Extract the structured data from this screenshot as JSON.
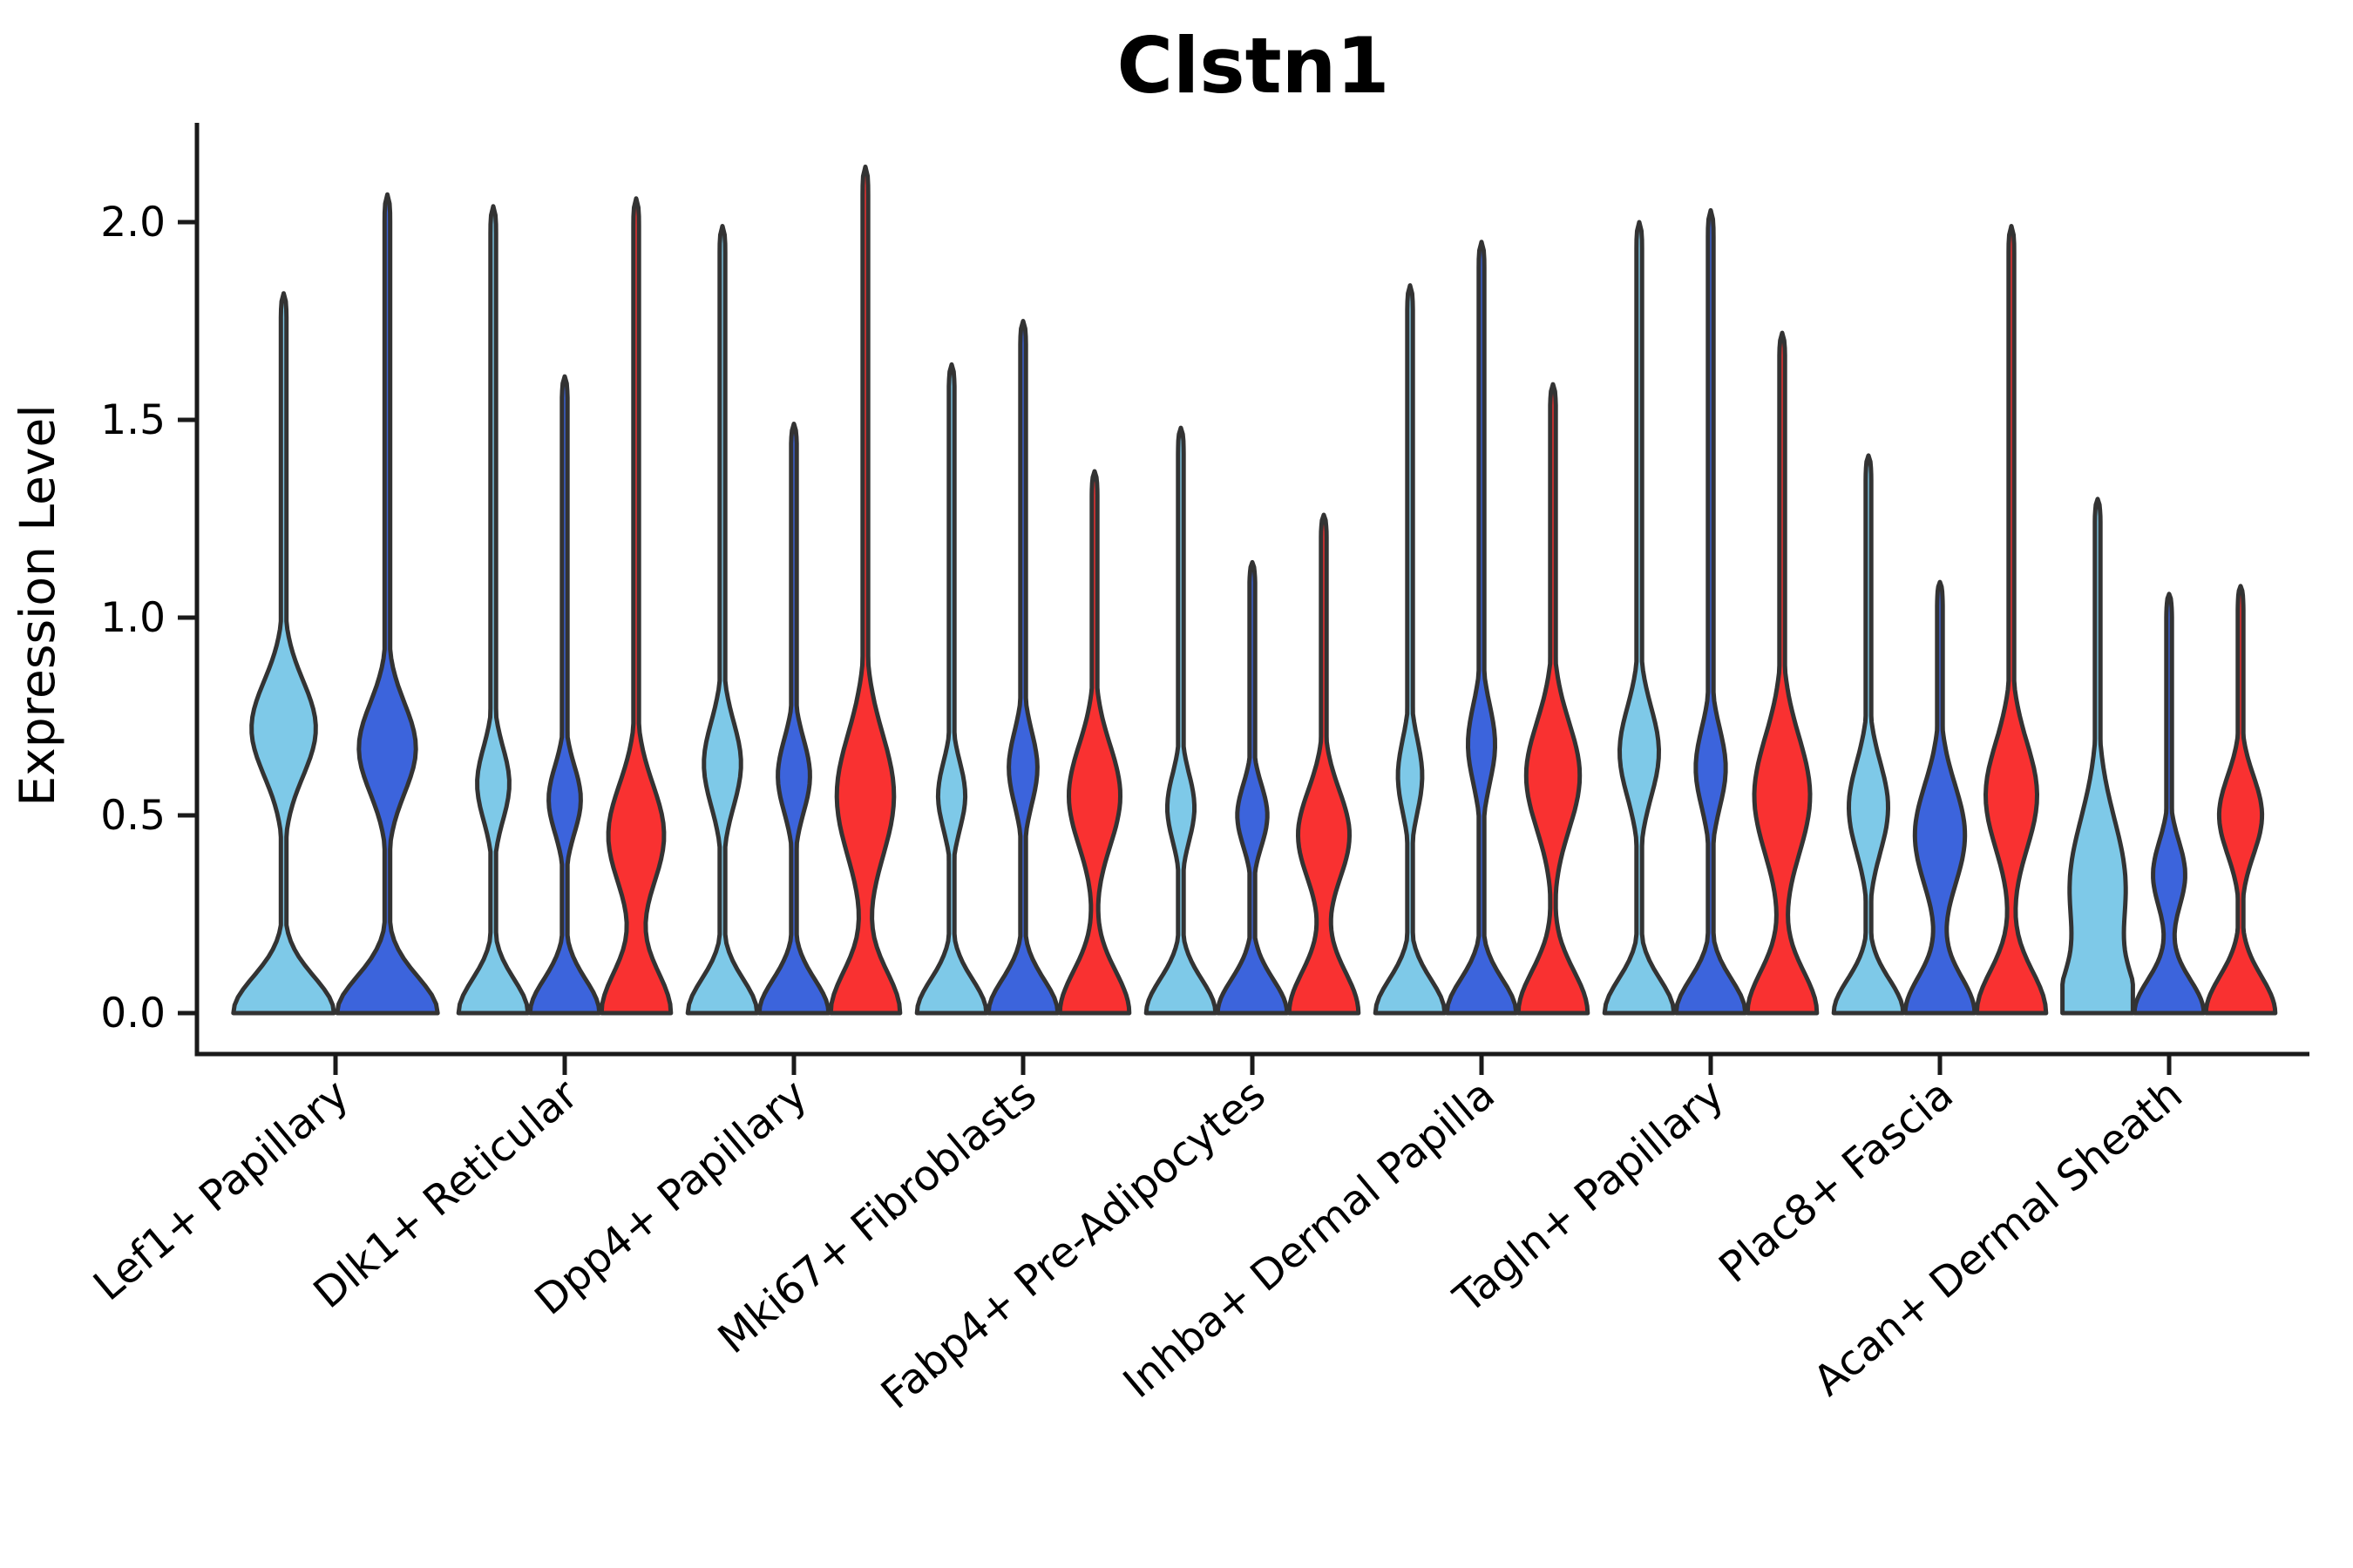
{
  "chart_data": {
    "type": "violin",
    "title": "Clstn1",
    "ylabel": "Expression Level",
    "xlabel": "",
    "yticks": [
      "0.0",
      "0.5",
      "1.0",
      "1.5",
      "2.0"
    ],
    "ytick_values": [
      0.0,
      0.5,
      1.0,
      1.5,
      2.0
    ],
    "ylim": [
      -0.1,
      2.25
    ],
    "grid": false,
    "legend": "none",
    "series": [
      {
        "name": "sky-blue-condition",
        "color": "#7EC9E8"
      },
      {
        "name": "royal-blue-condition",
        "color": "#3C64DC"
      },
      {
        "name": "red-condition",
        "color": "#F93131"
      }
    ],
    "outline_color": "#333333",
    "axis_color": "#1a1a1a",
    "groups": [
      {
        "label": "Lef1+ Papillary",
        "violins": [
          {
            "series": 0,
            "max": 1.82,
            "bulge_center": 0.72,
            "bulge_sigma": 0.17,
            "bulge_frac": 0.62,
            "base_sigma": 0.13
          },
          {
            "series": 1,
            "max": 2.07,
            "bulge_center": 0.67,
            "bulge_sigma": 0.16,
            "bulge_frac": 0.55,
            "base_sigma": 0.13
          }
        ]
      },
      {
        "label": "Dlk1+ Reticular",
        "violins": [
          {
            "series": 0,
            "max": 2.04,
            "bulge_center": 0.58,
            "bulge_sigma": 0.13,
            "bulge_frac": 0.45,
            "base_sigma": 0.12
          },
          {
            "series": 1,
            "max": 1.61,
            "bulge_center": 0.54,
            "bulge_sigma": 0.12,
            "bulge_frac": 0.45,
            "base_sigma": 0.12
          },
          {
            "series": 2,
            "max": 2.06,
            "bulge_center": 0.45,
            "bulge_sigma": 0.18,
            "bulge_frac": 0.78,
            "base_sigma": 0.15
          }
        ]
      },
      {
        "label": "Dpp4+ Papillary",
        "violins": [
          {
            "series": 0,
            "max": 1.99,
            "bulge_center": 0.63,
            "bulge_sigma": 0.15,
            "bulge_frac": 0.52,
            "base_sigma": 0.12
          },
          {
            "series": 1,
            "max": 1.49,
            "bulge_center": 0.6,
            "bulge_sigma": 0.13,
            "bulge_frac": 0.45,
            "base_sigma": 0.12
          },
          {
            "series": 2,
            "max": 2.14,
            "bulge_center": 0.55,
            "bulge_sigma": 0.22,
            "bulge_frac": 0.8,
            "base_sigma": 0.15
          }
        ]
      },
      {
        "label": "Mki67+ Fibroblasts",
        "violins": [
          {
            "series": 0,
            "max": 1.64,
            "bulge_center": 0.55,
            "bulge_sigma": 0.12,
            "bulge_frac": 0.38,
            "base_sigma": 0.12
          },
          {
            "series": 1,
            "max": 1.75,
            "bulge_center": 0.62,
            "bulge_sigma": 0.13,
            "bulge_frac": 0.4,
            "base_sigma": 0.12
          },
          {
            "series": 2,
            "max": 1.37,
            "bulge_center": 0.55,
            "bulge_sigma": 0.18,
            "bulge_frac": 0.72,
            "base_sigma": 0.15
          }
        ]
      },
      {
        "label": "Fabp4+ Pre-Adipocytes",
        "violins": [
          {
            "series": 0,
            "max": 1.48,
            "bulge_center": 0.52,
            "bulge_sigma": 0.12,
            "bulge_frac": 0.38,
            "base_sigma": 0.12
          },
          {
            "series": 1,
            "max": 1.14,
            "bulge_center": 0.5,
            "bulge_sigma": 0.11,
            "bulge_frac": 0.42,
            "base_sigma": 0.12
          },
          {
            "series": 2,
            "max": 1.26,
            "bulge_center": 0.45,
            "bulge_sigma": 0.16,
            "bulge_frac": 0.72,
            "base_sigma": 0.15
          }
        ]
      },
      {
        "label": "Inhba+ Dermal Papilla",
        "violins": [
          {
            "series": 0,
            "max": 1.84,
            "bulge_center": 0.6,
            "bulge_sigma": 0.13,
            "bulge_frac": 0.34,
            "base_sigma": 0.12
          },
          {
            "series": 1,
            "max": 1.95,
            "bulge_center": 0.68,
            "bulge_sigma": 0.14,
            "bulge_frac": 0.38,
            "base_sigma": 0.12
          },
          {
            "series": 2,
            "max": 1.59,
            "bulge_center": 0.6,
            "bulge_sigma": 0.19,
            "bulge_frac": 0.75,
            "base_sigma": 0.15
          }
        ]
      },
      {
        "label": "Tagln+ Papillary",
        "violins": [
          {
            "series": 0,
            "max": 2.0,
            "bulge_center": 0.66,
            "bulge_sigma": 0.16,
            "bulge_frac": 0.55,
            "base_sigma": 0.12
          },
          {
            "series": 1,
            "max": 2.03,
            "bulge_center": 0.62,
            "bulge_sigma": 0.14,
            "bulge_frac": 0.42,
            "base_sigma": 0.12
          },
          {
            "series": 2,
            "max": 1.72,
            "bulge_center": 0.55,
            "bulge_sigma": 0.21,
            "bulge_frac": 0.78,
            "base_sigma": 0.15
          }
        ]
      },
      {
        "label": "Plac8+ Fascia",
        "violins": [
          {
            "series": 0,
            "max": 1.41,
            "bulge_center": 0.52,
            "bulge_sigma": 0.16,
            "bulge_frac": 0.55,
            "base_sigma": 0.12
          },
          {
            "series": 1,
            "max": 1.09,
            "bulge_center": 0.45,
            "bulge_sigma": 0.18,
            "bulge_frac": 0.7,
            "base_sigma": 0.13
          },
          {
            "series": 2,
            "max": 1.99,
            "bulge_center": 0.55,
            "bulge_sigma": 0.19,
            "bulge_frac": 0.72,
            "base_sigma": 0.15
          }
        ]
      },
      {
        "label": "Acan+ Dermal Sheath",
        "violins": [
          {
            "series": 0,
            "max": 1.3,
            "bulge_center": 0.32,
            "bulge_sigma": 0.24,
            "bulge_frac": 0.78,
            "base_sigma": 0.14
          },
          {
            "series": 1,
            "max": 1.06,
            "bulge_center": 0.35,
            "bulge_sigma": 0.12,
            "bulge_frac": 0.45,
            "base_sigma": 0.12
          },
          {
            "series": 2,
            "max": 1.08,
            "bulge_center": 0.5,
            "bulge_sigma": 0.14,
            "bulge_frac": 0.6,
            "base_sigma": 0.13
          }
        ]
      }
    ]
  }
}
